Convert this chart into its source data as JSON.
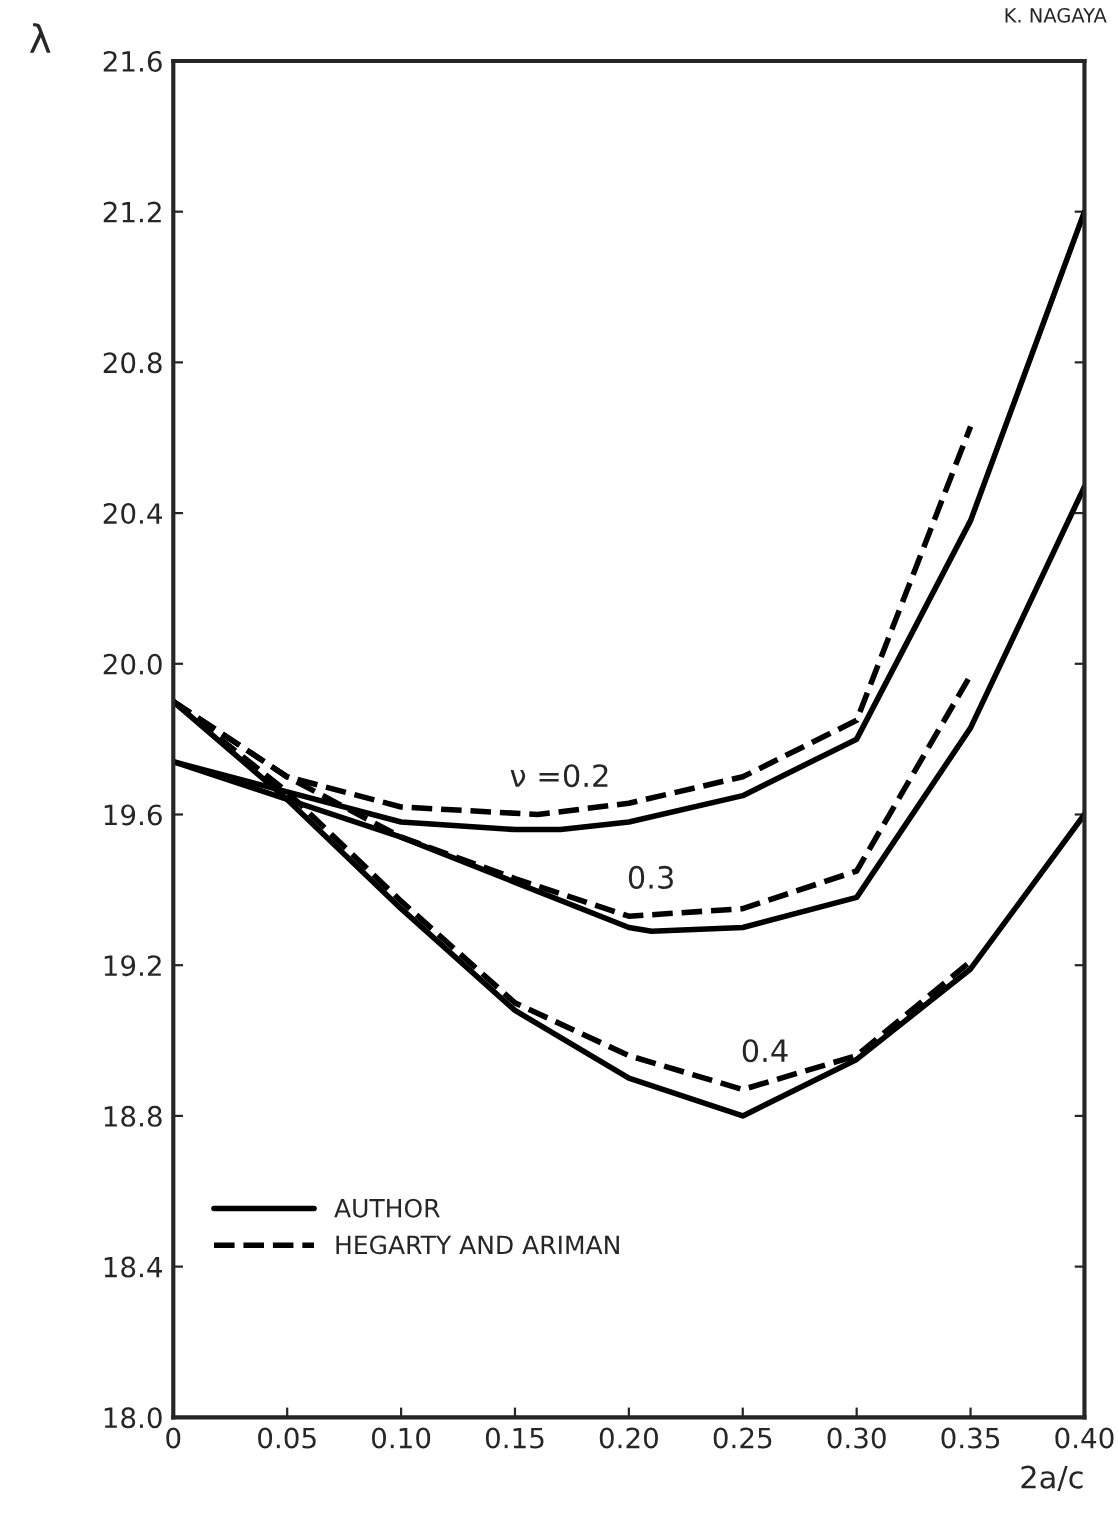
{
  "chart_data": {
    "type": "line",
    "xlabel": "2a/c",
    "ylabel": "λ",
    "xlim": [
      0,
      0.4
    ],
    "ylim": [
      18.0,
      21.6
    ],
    "xticks": [
      0,
      {
        "value": 0.05,
        "label": "0.05"
      },
      {
        "value": 0.1,
        "label": "0.10"
      },
      {
        "value": 0.15,
        "label": "0.15"
      },
      {
        "value": 0.2,
        "label": "0.20"
      },
      {
        "value": 0.25,
        "label": "0.25"
      },
      {
        "value": 0.3,
        "label": "0.30"
      },
      {
        "value": 0.35,
        "label": "0.35"
      },
      {
        "value": 0.4,
        "label": "0.40"
      }
    ],
    "yticks": [
      {
        "value": 18.0,
        "label": "18.0"
      },
      18.4,
      18.8,
      19.2,
      19.6,
      {
        "value": 20.0,
        "label": "20.0"
      },
      20.4,
      20.8,
      21.2,
      21.6
    ],
    "legend": "bottom left",
    "grid": false,
    "series": [
      {
        "name": "AUTHOR",
        "color": "#000000",
        "line_style": "solid",
        "x": [
          0,
          0.05,
          0.1,
          0.15,
          0.17,
          0.2,
          0.25,
          0.3,
          0.35,
          0.4
        ],
        "values": [
          19.74,
          19.66,
          19.58,
          19.56,
          19.56,
          19.58,
          19.65,
          19.8,
          20.38,
          21.2
        ]
      },
      {
        "name": "HEGARTY AND ARIMAN",
        "color": "#000000",
        "line_style": "dashed",
        "x": [
          0,
          0.05,
          0.1,
          0.16,
          0.2,
          0.25,
          0.3,
          0.35
        ],
        "values": [
          19.9,
          19.7,
          19.62,
          19.6,
          19.63,
          19.7,
          19.85,
          20.63
        ]
      },
      {
        "color": "#000000",
        "line_style": "solid",
        "x": [
          0,
          0.05,
          0.1,
          0.15,
          0.2,
          0.21,
          0.25,
          0.3,
          0.35,
          0.4
        ],
        "values": [
          19.74,
          19.64,
          19.54,
          19.42,
          19.3,
          19.29,
          19.3,
          19.38,
          19.83,
          20.47
        ]
      },
      {
        "color": "#000000",
        "line_style": "dashed",
        "x": [
          0,
          0.05,
          0.1,
          0.15,
          0.2,
          0.25,
          0.3,
          0.35
        ],
        "values": [
          19.9,
          19.7,
          19.54,
          19.43,
          19.33,
          19.35,
          19.45,
          19.97
        ]
      },
      {
        "color": "#000000",
        "line_style": "solid",
        "x": [
          0,
          0.05,
          0.1,
          0.15,
          0.2,
          0.25,
          0.3,
          0.35,
          0.4
        ],
        "values": [
          19.9,
          19.64,
          19.35,
          19.08,
          18.9,
          18.8,
          18.95,
          19.19,
          19.6
        ]
      },
      {
        "color": "#000000",
        "line_style": "dashed",
        "x": [
          0,
          0.05,
          0.1,
          0.15,
          0.2,
          0.25,
          0.3,
          0.35
        ],
        "values": [
          19.9,
          19.66,
          19.37,
          19.1,
          18.96,
          18.87,
          18.96,
          19.21
        ]
      }
    ],
    "annotations": [
      "ν =0.2",
      "0.3",
      "0.4",
      "K. NAGAYA"
    ]
  }
}
